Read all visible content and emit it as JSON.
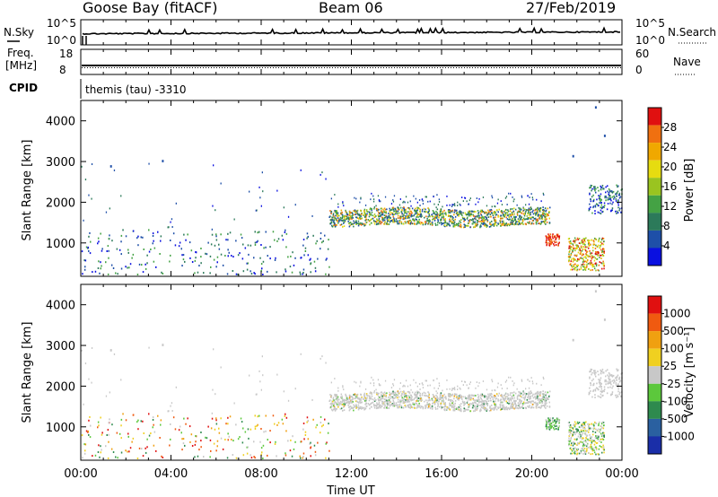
{
  "header": {
    "station": "Goose Bay (fitACF)",
    "beam": "Beam 06",
    "date": "27/Feb/2019"
  },
  "noise_panel": {
    "left_label": "N.Sky",
    "right_label": "N.Search",
    "left_ticks": [
      "10^5",
      "10^0"
    ],
    "right_ticks": [
      "10^5",
      "10^0"
    ]
  },
  "freq_panel": {
    "left_label_1": "Freq.",
    "left_label_2": "[MHz]",
    "right_label": "Nave",
    "left_ticks": [
      "18",
      "8"
    ],
    "right_ticks": [
      "60",
      "0"
    ]
  },
  "cpid": {
    "label": "CPID",
    "value": "themis (tau) -3310"
  },
  "power_panel": {
    "ylabel": "Slant Range [km]",
    "yticks": [
      "4000",
      "3000",
      "2000",
      "1000"
    ],
    "colorbar_label": "Power [dB]",
    "colorbar_ticks": [
      "28",
      "24",
      "20",
      "16",
      "12",
      "8",
      "4"
    ],
    "colors": [
      "#0a10e0",
      "#1e4fa8",
      "#2c7a5a",
      "#44a244",
      "#9ac420",
      "#e6dc10",
      "#f0a800",
      "#f07010",
      "#e01010"
    ]
  },
  "velocity_panel": {
    "ylabel": "Slant Range [km]",
    "yticks": [
      "4000",
      "3000",
      "2000",
      "1000"
    ],
    "colorbar_label": "Velocity [m s⁻¹]",
    "colorbar_ticks": [
      "1000",
      "500",
      "100",
      "25",
      "-25",
      "-100",
      "-500",
      "-1000"
    ],
    "colors": [
      "#1a2ea8",
      "#2a60a0",
      "#2e8a4e",
      "#5cc83c",
      "#c8c8c8",
      "#f0d020",
      "#f0a010",
      "#f05a10",
      "#e01010"
    ]
  },
  "xaxis": {
    "label": "Time UT",
    "ticks": [
      "00:00",
      "04:00",
      "08:00",
      "12:00",
      "16:00",
      "20:00",
      "00:00"
    ]
  },
  "chart_data": {
    "type": "heatmap",
    "title": "Goose Bay (fitACF)   Beam 06   27/Feb/2019",
    "xlabel": "Time UT",
    "ylabel": "Slant Range [km]",
    "xlim": [
      "00:00",
      "24:00"
    ],
    "ylim": [
      180,
      4500
    ],
    "x_ticks": [
      "00:00",
      "04:00",
      "08:00",
      "12:00",
      "16:00",
      "20:00",
      "00:00"
    ],
    "y_ticks": [
      1000,
      2000,
      3000,
      4000
    ],
    "power_range_db": [
      0,
      30
    ],
    "velocity_range": [
      -1000,
      1000
    ],
    "scatter_regions": [
      {
        "start_h": 11.0,
        "end_h": 20.8,
        "range_low_km": 1400,
        "range_high_km": 1850,
        "power_db": "8-24",
        "velocity": "-25 to 25"
      },
      {
        "start_h": 20.6,
        "end_h": 21.2,
        "range_low_km": 900,
        "range_high_km": 1200,
        "power_db": "24-28",
        "velocity": "-25 to 100"
      },
      {
        "start_h": 21.6,
        "end_h": 23.2,
        "range_low_km": 300,
        "range_high_km": 1100,
        "power_db": "12-28",
        "velocity": "-25 to 100"
      },
      {
        "start_h": 22.5,
        "end_h": 24.0,
        "range_low_km": 1700,
        "range_high_km": 2400,
        "power_db": "4-16",
        "velocity": "-25 to 25"
      },
      {
        "start_h": 0.0,
        "end_h": 11.0,
        "range_low_km": 200,
        "range_high_km": 1300,
        "power_db": "4-20",
        "velocity": "mixed sparse"
      }
    ]
  }
}
